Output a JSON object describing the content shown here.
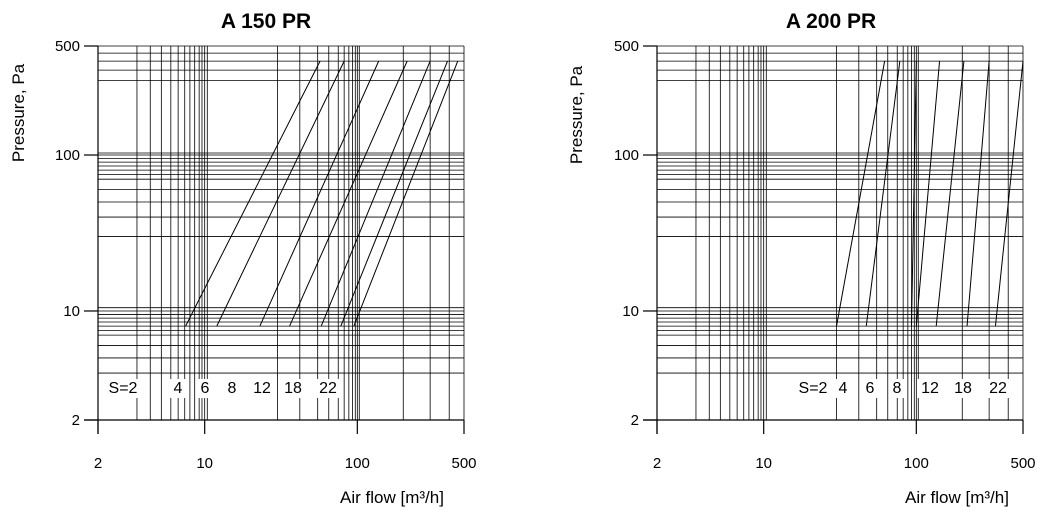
{
  "chart_data": [
    {
      "type": "line",
      "title": "A 150 PR",
      "xlabel": "Air flow [m³/h]",
      "ylabel": "Pressure, Pa",
      "x_scale": "log",
      "y_scale": "log",
      "xlim": [
        2,
        500
      ],
      "ylim": [
        2,
        500
      ],
      "x_ticks": [
        "2",
        "10",
        "100",
        "500"
      ],
      "y_ticks": [
        "2",
        "10",
        "100",
        "500"
      ],
      "grid": true,
      "series_labels": [
        "S=2",
        "4",
        "6",
        "8",
        "12",
        "18",
        "22"
      ],
      "series": [
        {
          "name": "S=2",
          "x": [
            7.5,
            57
          ],
          "y": [
            8,
            400
          ]
        },
        {
          "name": "4",
          "x": [
            12,
            82
          ],
          "y": [
            8,
            400
          ]
        },
        {
          "name": "6",
          "x": [
            23,
            138
          ],
          "y": [
            8,
            400
          ]
        },
        {
          "name": "8",
          "x": [
            36,
            212
          ],
          "y": [
            8,
            400
          ]
        },
        {
          "name": "12",
          "x": [
            58,
            300
          ],
          "y": [
            8,
            400
          ]
        },
        {
          "name": "18",
          "x": [
            78,
            390
          ],
          "y": [
            8,
            400
          ]
        },
        {
          "name": "22",
          "x": [
            95,
            455
          ],
          "y": [
            8,
            400
          ]
        }
      ]
    },
    {
      "type": "line",
      "title": "A 200 PR",
      "xlabel": "Air flow [m³/h]",
      "ylabel": "Pressure, Pa",
      "x_scale": "log",
      "y_scale": "log",
      "xlim": [
        2,
        500
      ],
      "ylim": [
        2,
        500
      ],
      "x_ticks": [
        "2",
        "10",
        "100",
        "500"
      ],
      "y_ticks": [
        "2",
        "10",
        "100",
        "500"
      ],
      "grid": true,
      "series_labels": [
        "S=2",
        "4",
        "6",
        "8",
        "12",
        "18",
        "22"
      ],
      "series": [
        {
          "name": "S=2",
          "x": [
            30,
            62
          ],
          "y": [
            8,
            400
          ]
        },
        {
          "name": "4",
          "x": [
            47,
            78
          ],
          "y": [
            8,
            400
          ]
        },
        {
          "name": "6",
          "x": [
            93,
            100
          ],
          "y": [
            8,
            400
          ]
        },
        {
          "name": "8",
          "x": [
            100,
            142
          ],
          "y": [
            8,
            400
          ]
        },
        {
          "name": "12",
          "x": [
            135,
            205
          ],
          "y": [
            8,
            400
          ]
        },
        {
          "name": "18",
          "x": [
            215,
            300
          ],
          "y": [
            8,
            400
          ]
        },
        {
          "name": "22",
          "x": [
            330,
            500
          ],
          "y": [
            8,
            400
          ]
        }
      ]
    }
  ]
}
